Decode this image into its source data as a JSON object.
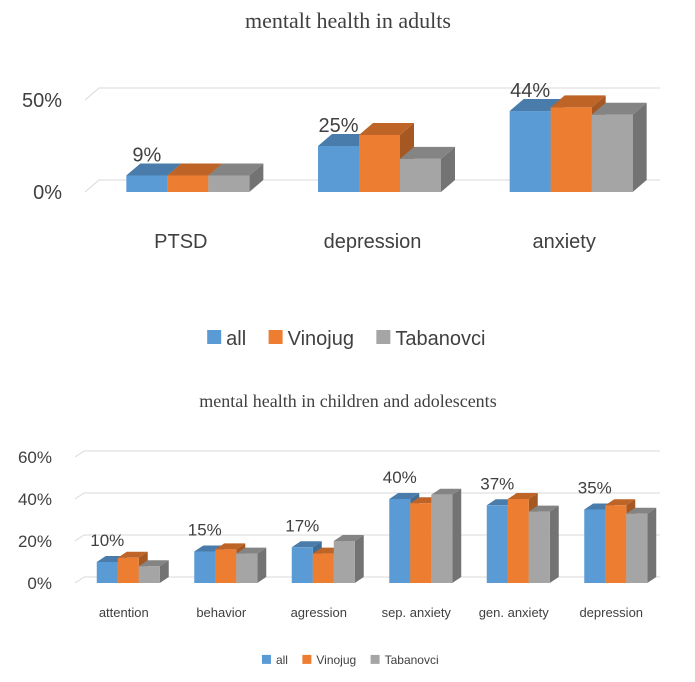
{
  "chart_data": [
    {
      "type": "bar",
      "title": "mentalt health in adults",
      "categories": [
        "PTSD",
        "depression",
        "anxiety"
      ],
      "series": [
        {
          "name": "all",
          "color": "#5b9bd5",
          "values": [
            9,
            25,
            44
          ],
          "value_labels": [
            "9%",
            "25%",
            "44%"
          ]
        },
        {
          "name": "Vinojug",
          "color": "#ed7d31",
          "values": [
            9,
            31,
            46
          ]
        },
        {
          "name": "Tabanovci",
          "color": "#a5a5a5",
          "values": [
            9,
            18,
            42
          ]
        }
      ],
      "ylim": [
        0,
        50
      ],
      "yticks": [
        {
          "value": 0,
          "label": "0%"
        },
        {
          "value": 50,
          "label": "50%"
        }
      ],
      "grid": true,
      "legend": "bottom"
    },
    {
      "type": "bar",
      "title": "mental health in children and adolescents",
      "categories": [
        "attention",
        "behavior",
        "agression",
        "sep. anxiety",
        "gen. anxiety",
        "depression"
      ],
      "series": [
        {
          "name": "all",
          "color": "#5b9bd5",
          "values": [
            10,
            15,
            17,
            40,
            37,
            35
          ],
          "value_labels": [
            "10%",
            "15%",
            "17%",
            "40%",
            "37%",
            "35%"
          ]
        },
        {
          "name": "Vinojug",
          "color": "#ed7d31",
          "values": [
            12,
            16,
            14,
            38,
            40,
            37
          ]
        },
        {
          "name": "Tabanovci",
          "color": "#a5a5a5",
          "values": [
            8,
            14,
            20,
            42,
            34,
            33
          ]
        }
      ],
      "ylim": [
        0,
        60
      ],
      "yticks": [
        {
          "value": 0,
          "label": "0%"
        },
        {
          "value": 20,
          "label": "20%"
        },
        {
          "value": 40,
          "label": "40%"
        },
        {
          "value": 60,
          "label": "60%"
        }
      ],
      "grid": true,
      "legend": "bottom"
    }
  ]
}
